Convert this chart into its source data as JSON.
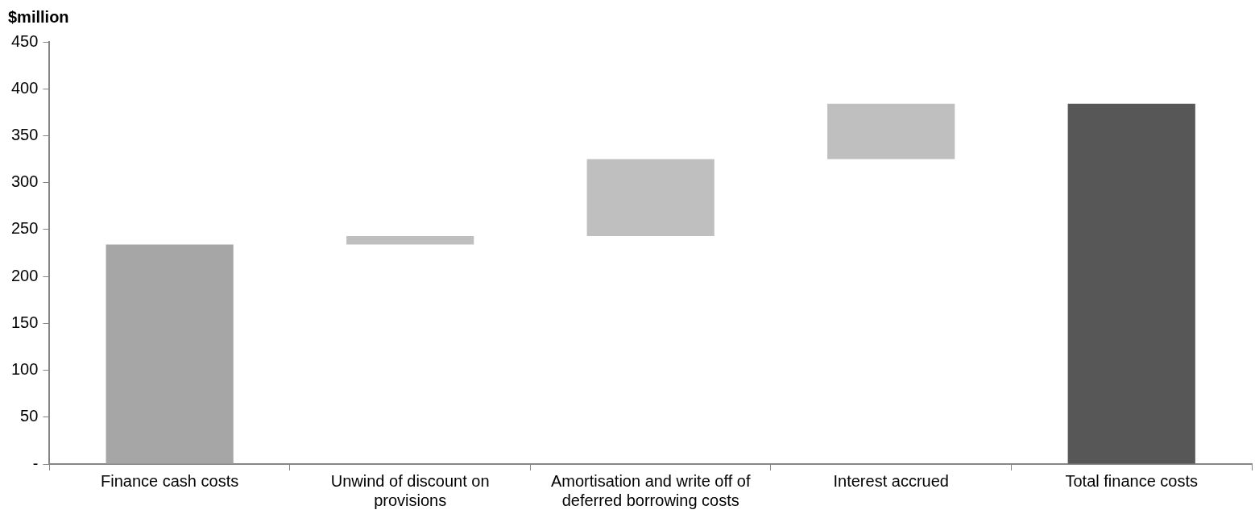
{
  "chart_data": {
    "type": "bar",
    "ylabel": "$million",
    "categories": [
      "Finance cash costs",
      "Unwind of discount on provisions",
      "Amortisation and write off of deferred borrowing costs",
      "Interest accrued",
      "Total finance costs"
    ],
    "values": [
      234,
      9,
      82,
      59,
      384
    ],
    "base": [
      0,
      234,
      243,
      325,
      0
    ],
    "colors": [
      "#a6a6a6",
      "#bfbfbf",
      "#bfbfbf",
      "#bfbfbf",
      "#575757"
    ],
    "ylim": [
      0,
      450
    ],
    "yticks": [
      {
        "value": 0,
        "label": "-"
      },
      50,
      100,
      150,
      200,
      250,
      300,
      350,
      400,
      450
    ],
    "grid": false,
    "legend": false
  }
}
